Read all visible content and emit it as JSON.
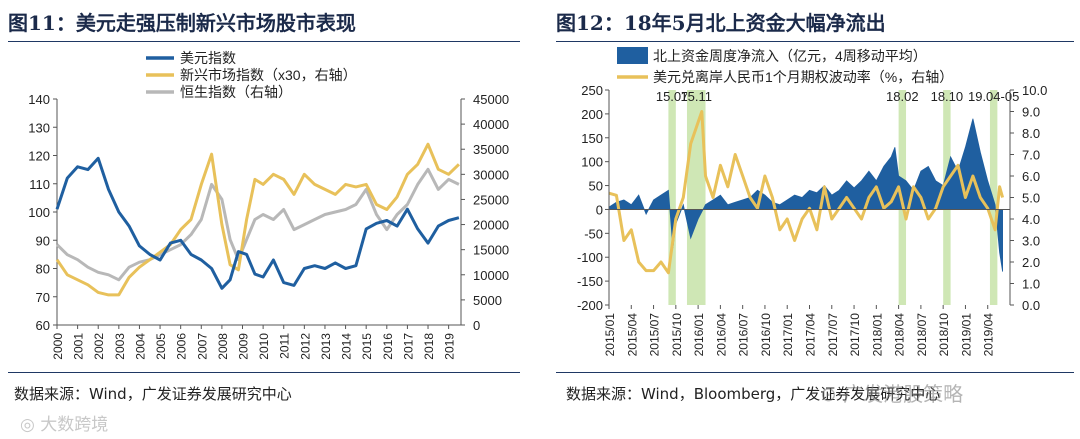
{
  "left": {
    "title": "图11：美元走强压制新兴市场股市表现",
    "source": "数据来源：Wind，广发证券发展研究中心"
  },
  "right": {
    "title": "图12：18年5月北上资金大幅净流出",
    "source": "数据来源：Wind，Bloomberg，广发证券发展研究中心"
  },
  "watermarks": [
    "大数跨境",
    "广发港股策略"
  ],
  "chart_data": [
    {
      "type": "line",
      "title": "美元走强压制新兴市场股市表现",
      "x_ticks": [
        "2000",
        "2001",
        "2002",
        "2003",
        "2004",
        "2005",
        "2006",
        "2007",
        "2008",
        "2009",
        "2010",
        "2011",
        "2012",
        "2013",
        "2014",
        "2015",
        "2016",
        "2017",
        "2018",
        "2019"
      ],
      "ylim": [
        60,
        140
      ],
      "y_ticks": [
        60,
        70,
        80,
        90,
        100,
        110,
        120,
        130,
        140
      ],
      "y2lim": [
        0,
        45000
      ],
      "y2_ticks": [
        0,
        5000,
        10000,
        15000,
        20000,
        25000,
        30000,
        35000,
        40000,
        45000
      ],
      "legend": [
        "美元指数",
        "新兴市场指数（x30，右轴）",
        "恒生指数（右轴）"
      ],
      "legend_position": "top-left",
      "series": [
        {
          "name": "美元指数",
          "axis": "left",
          "color": "#1f5fa0",
          "x": [
            2000,
            2000.5,
            2001,
            2001.5,
            2002,
            2002.5,
            2003,
            2003.5,
            2004,
            2004.5,
            2005,
            2005.5,
            2006,
            2006.5,
            2007,
            2007.5,
            2008,
            2008.4,
            2008.8,
            2009.2,
            2009.6,
            2010,
            2010.5,
            2011,
            2011.5,
            2012,
            2012.5,
            2013,
            2013.5,
            2014,
            2014.5,
            2015,
            2015.5,
            2016,
            2016.5,
            2017,
            2017.5,
            2018,
            2018.5,
            2019,
            2019.5
          ],
          "y": [
            101,
            112,
            116,
            115,
            119,
            108,
            100,
            95,
            88,
            85,
            83,
            89,
            90,
            85,
            83,
            80,
            73,
            76,
            86,
            85,
            78,
            77,
            83,
            75,
            74,
            80,
            81,
            80,
            82,
            80,
            81,
            94,
            96,
            97,
            95,
            101,
            94,
            89,
            95,
            97,
            98
          ]
        },
        {
          "name": "新兴市场指数（x30，右轴）",
          "axis": "right",
          "color": "#e8c15a",
          "x": [
            2000,
            2000.5,
            2001,
            2001.5,
            2002,
            2002.5,
            2003,
            2003.5,
            2004,
            2004.5,
            2005,
            2005.5,
            2006,
            2006.5,
            2007,
            2007.5,
            2008,
            2008.4,
            2008.8,
            2009.2,
            2009.6,
            2010,
            2010.5,
            2011,
            2011.5,
            2012,
            2012.5,
            2013,
            2013.5,
            2014,
            2014.5,
            2015,
            2015.5,
            2016,
            2016.5,
            2017,
            2017.5,
            2018,
            2018.5,
            2019,
            2019.5
          ],
          "y": [
            13000,
            10000,
            9000,
            8000,
            6500,
            6000,
            6000,
            9500,
            11500,
            13000,
            14500,
            16000,
            19000,
            21000,
            28000,
            34000,
            20000,
            12000,
            11000,
            21000,
            29000,
            28000,
            30000,
            29000,
            26000,
            30000,
            28000,
            27000,
            26000,
            28000,
            27500,
            28000,
            24000,
            23000,
            25500,
            30000,
            32000,
            36000,
            31000,
            30000,
            32000
          ]
        },
        {
          "name": "恒生指数（右轴）",
          "axis": "right",
          "color": "#b8b8b8",
          "x": [
            2000,
            2000.5,
            2001,
            2001.5,
            2002,
            2002.5,
            2003,
            2003.5,
            2004,
            2004.5,
            2005,
            2005.5,
            2006,
            2006.5,
            2007,
            2007.5,
            2008,
            2008.4,
            2008.8,
            2009.2,
            2009.6,
            2010,
            2010.5,
            2011,
            2011.5,
            2012,
            2012.5,
            2013,
            2013.5,
            2014,
            2014.5,
            2015,
            2015.5,
            2016,
            2016.5,
            2017,
            2017.5,
            2018,
            2018.5,
            2019,
            2019.5
          ],
          "y": [
            16000,
            14000,
            13000,
            11500,
            10500,
            10000,
            9000,
            11500,
            12500,
            13000,
            14000,
            15000,
            16000,
            18000,
            21000,
            28000,
            25000,
            17000,
            13000,
            17000,
            21000,
            22000,
            21000,
            23000,
            19000,
            20000,
            21000,
            22000,
            22500,
            23000,
            24000,
            27000,
            22000,
            19000,
            22000,
            24000,
            28000,
            31000,
            27000,
            29000,
            28000
          ]
        }
      ]
    },
    {
      "type": "bar+line",
      "title": "18年5月北上资金大幅净流出",
      "x_ticks": [
        "2015/01",
        "2015/04",
        "2015/07",
        "2015/10",
        "2016/01",
        "2016/04",
        "2016/07",
        "2016/10",
        "2017/01",
        "2017/04",
        "2017/07",
        "2017/10",
        "2018/01",
        "2018/04",
        "2018/07",
        "2018/10",
        "2019/01",
        "2019/04"
      ],
      "ylim": [
        -200,
        250
      ],
      "y_ticks": [
        -200,
        -150,
        -100,
        -50,
        0,
        50,
        100,
        150,
        200,
        250
      ],
      "y2lim": [
        0.0,
        10.0
      ],
      "y2_ticks": [
        "0.0",
        "1.0",
        "2.0",
        "3.0",
        "4.0",
        "5.0",
        "6.0",
        "7.0",
        "8.0",
        "9.0",
        "10.0"
      ],
      "legend": [
        "北上资金周度净流入（亿元，4周移动平均）",
        "美元兑离岸人民币1个月期权波动率（%，右轴）"
      ],
      "legend_position": "top",
      "highlights": [
        {
          "start": 8.0,
          "end": 9.0,
          "label": "15.07"
        },
        {
          "start": 10.5,
          "end": 13.0,
          "label": "15.11"
        },
        {
          "start": 39.0,
          "end": 40.0,
          "label": "18.02"
        },
        {
          "start": 45.0,
          "end": 46.0,
          "label": "18.10"
        },
        {
          "start": 51.3,
          "end": 52.3,
          "label": "19.04-05"
        }
      ],
      "series": [
        {
          "name": "北上资金周度净流入（亿元，4周移动平均）",
          "axis": "left",
          "kind": "area",
          "color": "#1f5fa0",
          "x": [
            0,
            1,
            2,
            3,
            4,
            5,
            6,
            7,
            8,
            8.6,
            9,
            10,
            11,
            12,
            13,
            14,
            15,
            16,
            17,
            18,
            19,
            20,
            21,
            22,
            23,
            24,
            25,
            26,
            27,
            28,
            29,
            30,
            31,
            32,
            33,
            34,
            35,
            36,
            37,
            38,
            38.5,
            39,
            40,
            41,
            42,
            43,
            44,
            45,
            46,
            47,
            48,
            49,
            50,
            51,
            52,
            52.6,
            53
          ],
          "y": [
            5,
            15,
            20,
            10,
            30,
            -10,
            20,
            30,
            40,
            -80,
            -30,
            10,
            -60,
            -20,
            10,
            20,
            30,
            10,
            15,
            20,
            25,
            40,
            30,
            15,
            10,
            20,
            30,
            25,
            40,
            35,
            50,
            30,
            40,
            60,
            45,
            60,
            80,
            60,
            90,
            110,
            130,
            70,
            60,
            40,
            80,
            90,
            60,
            50,
            110,
            80,
            130,
            190,
            120,
            60,
            10,
            -90,
            -130
          ]
        },
        {
          "name": "美元兑离岸人民币1个月期权波动率（%，右轴）",
          "axis": "right",
          "kind": "line",
          "color": "#e8c15a",
          "x": [
            0,
            1,
            2,
            3,
            4,
            5,
            6,
            7,
            8,
            9,
            10,
            11,
            12,
            12.5,
            13,
            14,
            15,
            16,
            17,
            18,
            19,
            20,
            21,
            22,
            23,
            24,
            25,
            26,
            27,
            28,
            29,
            30,
            31,
            32,
            33,
            34,
            35,
            36,
            37,
            38,
            39,
            40,
            41,
            42,
            43,
            44,
            45,
            46,
            47,
            48,
            49,
            50,
            51,
            52,
            52.6,
            53
          ],
          "y": [
            5.2,
            5.1,
            3.0,
            3.5,
            2.0,
            1.6,
            1.6,
            2.0,
            1.5,
            4.0,
            5.0,
            7.5,
            8.5,
            9.0,
            6.0,
            5.0,
            6.5,
            5.5,
            7.0,
            6.0,
            5.0,
            4.5,
            6.0,
            5.0,
            3.5,
            4.0,
            3.0,
            4.0,
            4.5,
            3.5,
            5.5,
            4.0,
            4.5,
            5.0,
            4.5,
            4.0,
            5.0,
            5.5,
            4.5,
            4.8,
            5.5,
            4.0,
            5.5,
            5.0,
            4.0,
            4.5,
            5.5,
            6.0,
            6.5,
            5.0,
            6.0,
            5.0,
            4.5,
            3.5,
            5.5,
            5.0
          ]
        }
      ]
    }
  ]
}
